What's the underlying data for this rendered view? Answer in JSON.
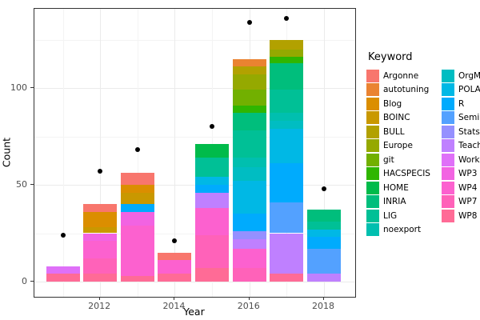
{
  "figure": {
    "x_axis_title": "Year",
    "y_axis_title": "Count"
  },
  "legend": {
    "title": "Keyword",
    "position": "right",
    "columns": 2
  },
  "chart_data": {
    "type": "bar",
    "subtype": "stacked-bars-with-point-overlay",
    "x": [
      2011,
      2012,
      2013,
      2014,
      2015,
      2016,
      2017,
      2018
    ],
    "x_major_tick_labels": [
      "2012",
      "2014",
      "2016",
      "2018"
    ],
    "y_major": [
      0,
      50,
      100
    ],
    "y_tick_labels": [
      "0",
      "50",
      "100"
    ],
    "y_minor": [
      25,
      75,
      125
    ],
    "ylim": [
      -8,
      141
    ],
    "grid": true,
    "xlabel": "Year",
    "ylabel": "Count",
    "bar_totals": [
      8,
      40,
      56,
      15,
      71,
      115,
      125,
      37
    ],
    "points": {
      "name": "yearly-count-dots",
      "color": "#000000",
      "values": [
        24,
        57,
        68,
        21,
        80,
        134,
        136,
        48
      ]
    },
    "series_bottom_to_top": [
      {
        "name": "WP8",
        "color": "#FF6B96",
        "values": [
          4,
          4,
          3,
          4,
          7,
          0,
          4,
          0
        ]
      },
      {
        "name": "WP7",
        "color": "#FF62B9",
        "values": [
          0,
          8,
          0,
          0,
          17,
          7,
          0,
          0
        ]
      },
      {
        "name": "WP4",
        "color": "#FC61CF",
        "values": [
          0,
          9,
          26,
          7,
          14,
          10,
          0,
          0
        ]
      },
      {
        "name": "WP3",
        "color": "#F263E2",
        "values": [
          0,
          4,
          7,
          0,
          0,
          0,
          0,
          0
        ]
      },
      {
        "name": "Workload",
        "color": "#DF70F8",
        "values": [
          4,
          0,
          0,
          0,
          0,
          0,
          0,
          0
        ]
      },
      {
        "name": "Teaching",
        "color": "#BF80FF",
        "values": [
          0,
          0,
          0,
          0,
          8,
          5,
          21,
          4
        ]
      },
      {
        "name": "Stats",
        "color": "#9590FF",
        "values": [
          0,
          0,
          0,
          0,
          0,
          4,
          0,
          0
        ]
      },
      {
        "name": "Seminar",
        "color": "#53A1FF",
        "values": [
          0,
          0,
          0,
          0,
          0,
          0,
          16,
          13
        ]
      },
      {
        "name": "R",
        "color": "#00ABFD",
        "values": [
          0,
          0,
          4,
          0,
          4,
          9,
          20,
          6
        ]
      },
      {
        "name": "POLARIS",
        "color": "#00B8E5",
        "values": [
          0,
          0,
          0,
          0,
          4,
          17,
          18,
          4
        ]
      },
      {
        "name": "OrgMode",
        "color": "#00BDC2",
        "values": [
          0,
          0,
          0,
          0,
          0,
          7,
          4,
          0
        ]
      },
      {
        "name": "noexport",
        "color": "#00BFAF",
        "values": [
          0,
          0,
          0,
          0,
          0,
          5,
          4,
          0
        ]
      },
      {
        "name": "LIG",
        "color": "#00C096",
        "values": [
          0,
          0,
          0,
          0,
          10,
          14,
          12,
          4
        ]
      },
      {
        "name": "INRIA",
        "color": "#00BE7C",
        "values": [
          0,
          0,
          0,
          0,
          0,
          9,
          14,
          6
        ]
      },
      {
        "name": "HOME",
        "color": "#00BB4B",
        "values": [
          0,
          0,
          0,
          0,
          7,
          0,
          0,
          0
        ]
      },
      {
        "name": "HACSPECIS",
        "color": "#2FB600",
        "values": [
          0,
          0,
          0,
          0,
          0,
          4,
          3,
          0
        ]
      },
      {
        "name": "git",
        "color": "#72B000",
        "values": [
          0,
          0,
          0,
          0,
          0,
          8,
          0,
          0
        ]
      },
      {
        "name": "Europe",
        "color": "#95A900",
        "values": [
          0,
          0,
          0,
          0,
          0,
          8,
          4,
          0
        ]
      },
      {
        "name": "BULL",
        "color": "#B2A100",
        "values": [
          0,
          0,
          0,
          0,
          0,
          4,
          5,
          0
        ]
      },
      {
        "name": "BOINC",
        "color": "#C99800",
        "values": [
          0,
          3,
          6,
          0,
          0,
          0,
          0,
          0
        ]
      },
      {
        "name": "Blog",
        "color": "#DB8E00",
        "values": [
          0,
          8,
          4,
          0,
          0,
          0,
          0,
          0
        ]
      },
      {
        "name": "autotuning",
        "color": "#EA8331",
        "values": [
          0,
          0,
          0,
          0,
          0,
          4,
          0,
          0
        ]
      },
      {
        "name": "Argonne",
        "color": "#F8766D",
        "values": [
          0,
          4,
          6,
          4,
          0,
          0,
          0,
          0
        ]
      }
    ]
  }
}
